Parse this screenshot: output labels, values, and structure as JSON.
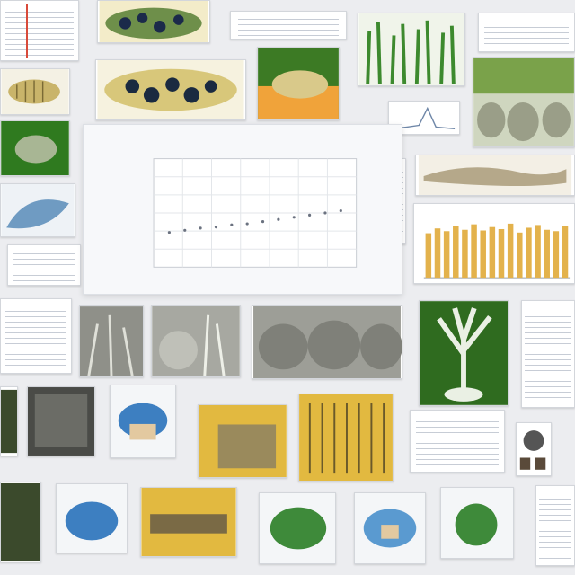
{
  "collage": {
    "description_hidden": "",
    "tiles": [
      {
        "id": "t01",
        "kind": "doc",
        "accent": "#d84a3a"
      },
      {
        "id": "t02",
        "kind": "fossil",
        "accent": "#2c5d9e"
      },
      {
        "id": "t03",
        "kind": "doc",
        "accent": "#e08a3c"
      },
      {
        "id": "t04",
        "kind": "plants",
        "accent": "#3d8a2e"
      },
      {
        "id": "t05",
        "kind": "fish",
        "accent": "#c9b46a"
      },
      {
        "id": "t06",
        "kind": "mini-chart",
        "accent": "#6f87a8"
      },
      {
        "id": "t07",
        "kind": "roots",
        "accent": "#7aa24a"
      },
      {
        "id": "t08",
        "kind": "bar-chart",
        "accent": "#e3b24c"
      },
      {
        "id": "t09",
        "kind": "tree",
        "accent": "#2f6b1f"
      },
      {
        "id": "t10",
        "kind": "rocks",
        "accent": "#8f9089"
      },
      {
        "id": "t11",
        "kind": "yellow-grid",
        "accent": "#e2b940"
      },
      {
        "id": "t12",
        "kind": "blue-fossil",
        "accent": "#3d7fc1"
      }
    ]
  },
  "main_chart": {
    "type": "scatter",
    "title": "",
    "xlabel": "",
    "ylabel": "",
    "x": [
      1,
      2,
      3,
      4,
      5,
      6,
      7,
      8,
      9,
      10,
      11,
      12
    ],
    "y": [
      3.2,
      3.4,
      3.6,
      3.7,
      3.9,
      4.0,
      4.2,
      4.4,
      4.6,
      4.8,
      5.0,
      5.2
    ],
    "xlim": [
      0,
      13
    ],
    "ylim": [
      0,
      10
    ],
    "grid": true
  },
  "bar_chart": {
    "type": "bar",
    "values": [
      6.5,
      7.2,
      6.8,
      7.6,
      7.0,
      7.8,
      6.9,
      7.4,
      7.1,
      7.9,
      6.6,
      7.3,
      7.7,
      7.0,
      6.8,
      7.5
    ],
    "ylim": [
      0,
      10
    ],
    "color": "#e3b24c"
  }
}
